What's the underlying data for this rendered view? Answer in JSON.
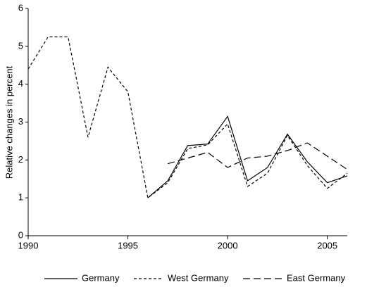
{
  "chart_data": {
    "type": "line",
    "y_label": "Relative changes in percent",
    "x": [
      1990,
      1991,
      1992,
      1993,
      1994,
      1995,
      1996,
      1997,
      1998,
      1999,
      2000,
      2001,
      2002,
      2003,
      2004,
      2005,
      2006
    ],
    "xlim": [
      1990,
      2006
    ],
    "xticks": [
      1990,
      1995,
      2000,
      2005
    ],
    "ylim": [
      0,
      6
    ],
    "yticks": [
      0,
      1,
      2,
      3,
      4,
      5,
      6
    ],
    "grid": false,
    "legend": "bottom",
    "series": [
      {
        "name": "Germany",
        "color": "#000000",
        "dash": "none",
        "values": [
          null,
          null,
          null,
          null,
          null,
          null,
          1.0,
          1.45,
          2.38,
          2.42,
          3.15,
          1.45,
          1.8,
          2.68,
          1.95,
          1.4,
          1.58
        ]
      },
      {
        "name": "West Germany",
        "color": "#000000",
        "dash": "4,3",
        "values": [
          4.4,
          5.25,
          5.25,
          2.6,
          4.45,
          3.8,
          1.0,
          1.4,
          2.3,
          2.4,
          2.95,
          1.3,
          1.65,
          2.65,
          1.85,
          1.25,
          1.65
        ]
      },
      {
        "name": "East Germany",
        "color": "#000000",
        "dash": "10,5",
        "values": [
          null,
          null,
          null,
          null,
          null,
          null,
          null,
          1.9,
          2.05,
          2.2,
          1.8,
          2.05,
          2.1,
          2.25,
          2.45,
          2.1,
          1.75
        ]
      }
    ]
  }
}
